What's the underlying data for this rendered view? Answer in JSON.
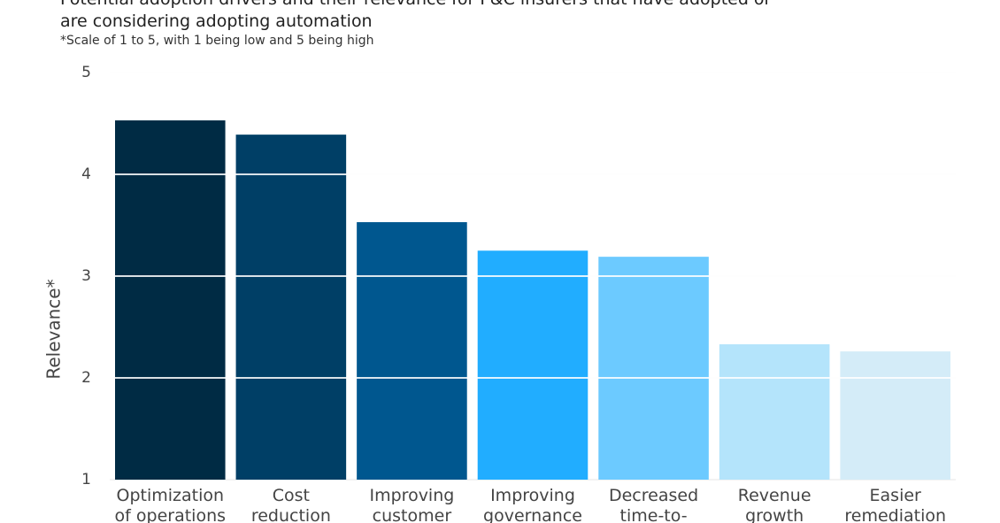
{
  "chart_data": {
    "type": "bar",
    "title": "Potential adoption drivers and their relevance for P&C insurers that have adopted or are considering adopting automation",
    "subtitle": "*Scale of 1 to 5, with 1 being low and 5 being high",
    "y_label": "Relevance*",
    "categories": [
      "Optimization of operations",
      "Cost reduction",
      "Improving customer",
      "Improving governance",
      "Decreased time-to-",
      "Revenue growth",
      "Easier remediation"
    ],
    "values": [
      4.53,
      4.39,
      3.53,
      3.25,
      3.19,
      2.33,
      2.26
    ],
    "colors": [
      "#002b44",
      "#003f66",
      "#00578f",
      "#21adff",
      "#6ccaff",
      "#b4e4fb",
      "#d4ecf8"
    ],
    "ylim": [
      1,
      5
    ],
    "yticks": [
      1,
      2,
      3,
      4,
      5
    ],
    "grid": true
  }
}
